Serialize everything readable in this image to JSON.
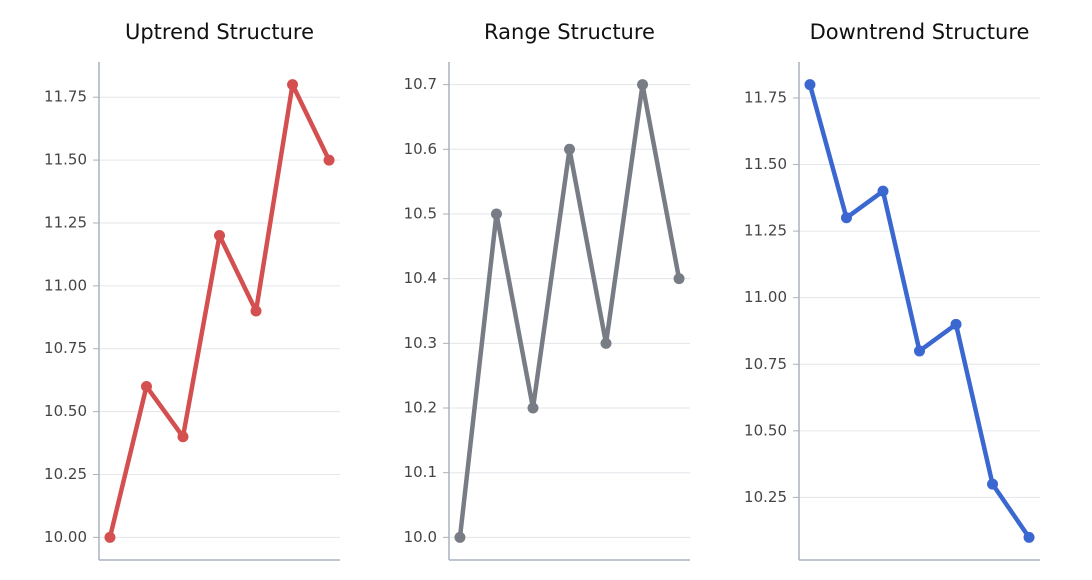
{
  "chart_data": [
    {
      "type": "line",
      "title": "Uptrend Structure",
      "x": [
        0,
        1,
        2,
        3,
        4,
        5,
        6
      ],
      "values": [
        10.0,
        10.6,
        10.4,
        11.2,
        10.9,
        11.8,
        11.5
      ],
      "color": "#d44f4f",
      "xlim": [
        -0.3,
        6.3
      ],
      "ylim": [
        9.91,
        11.89
      ],
      "grid": true,
      "yticks": [
        {
          "value": 10.0,
          "label": "10.00"
        },
        10.25,
        {
          "value": 10.5,
          "label": "10.50"
        },
        10.75,
        {
          "value": 11.0,
          "label": "11.00"
        },
        11.25,
        {
          "value": 11.5,
          "label": "11.50"
        },
        11.75
      ]
    },
    {
      "type": "line",
      "title": "Range Structure",
      "x": [
        0,
        1,
        2,
        3,
        4,
        5,
        6
      ],
      "values": [
        10.0,
        10.5,
        10.2,
        10.6,
        10.3,
        10.7,
        10.4
      ],
      "color": "#787c84",
      "xlim": [
        -0.3,
        6.3
      ],
      "ylim": [
        9.965,
        10.735
      ],
      "grid": true,
      "yticks": [
        {
          "value": 10.0,
          "label": "10.0"
        },
        10.1,
        10.2,
        10.3,
        10.4,
        10.5,
        10.6,
        10.7
      ]
    },
    {
      "type": "line",
      "title": "Downtrend Structure",
      "x": [
        0,
        1,
        2,
        3,
        4,
        5,
        6
      ],
      "values": [
        11.8,
        11.3,
        11.4,
        10.8,
        10.9,
        10.3,
        10.1
      ],
      "color": "#3a68d0",
      "xlim": [
        -0.3,
        6.3
      ],
      "ylim": [
        10.015,
        11.885
      ],
      "grid": true,
      "yticks": [
        10.25,
        {
          "value": 10.5,
          "label": "10.50"
        },
        10.75,
        {
          "value": 11.0,
          "label": "11.00"
        },
        11.25,
        {
          "value": 11.5,
          "label": "11.50"
        },
        11.75
      ]
    }
  ]
}
